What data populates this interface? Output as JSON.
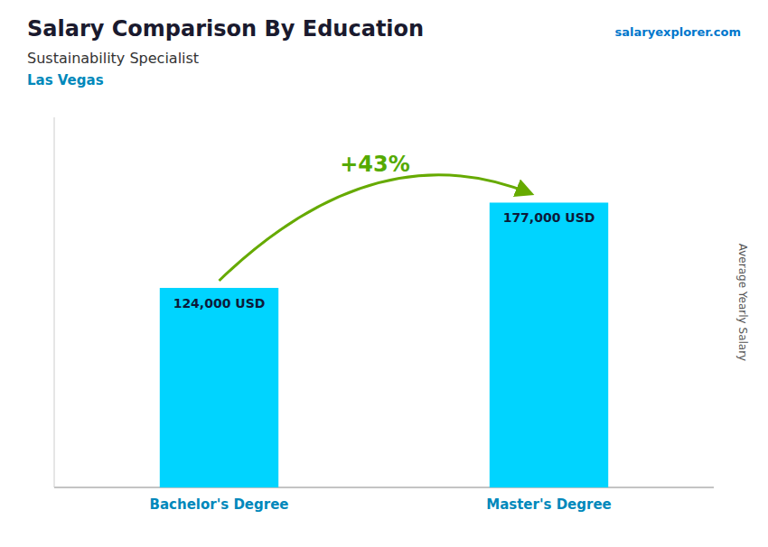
{
  "chart_data": {
    "type": "bar",
    "title": "Salary Comparison By Education",
    "subtitle": "Sustainability Specialist",
    "location": "Las Vegas",
    "source": "salaryexplorer.com",
    "ylabel": "Average Yearly Salary",
    "annotation": "+43%",
    "categories": [
      "Bachelor's Degree",
      "Master's Degree"
    ],
    "values": [
      124000,
      177000
    ],
    "value_labels": [
      "124,000 USD",
      "177,000 USD"
    ],
    "data_labels": true,
    "color": "#00d4ff",
    "ylim": [
      0,
      230000
    ],
    "tick_labels": false,
    "grid": false
  }
}
